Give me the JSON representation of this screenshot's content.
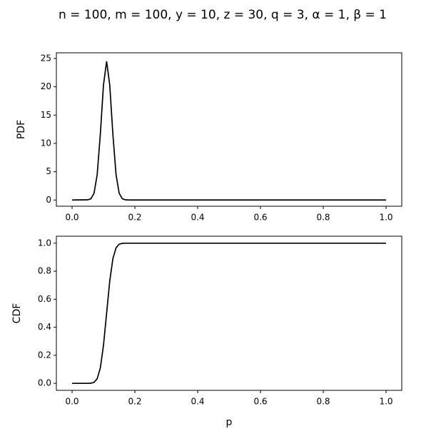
{
  "title": "n = 100, m = 100, y = 10, z = 30, q = 3, α = 1, β = 1",
  "chart_data": [
    {
      "type": "line",
      "y_label": "PDF",
      "x": [
        0,
        0.05,
        0.06,
        0.07,
        0.08,
        0.09,
        0.1,
        0.11,
        0.12,
        0.13,
        0.14,
        0.15,
        0.16,
        0.17,
        0.18,
        0.2,
        0.3,
        0.4,
        0.5,
        0.6,
        0.7,
        0.8,
        0.9,
        1.0
      ],
      "series": [
        {
          "color": "#000000",
          "values": [
            0,
            0.03,
            0.22,
            1.2,
            4.5,
            11.6,
            20.3,
            24.5,
            20.3,
            11.6,
            4.5,
            1.2,
            0.22,
            0.03,
            0,
            0,
            0,
            0,
            0,
            0,
            0,
            0,
            0,
            0
          ]
        }
      ],
      "xlim": [
        -0.05,
        1.05
      ],
      "ylim": [
        -1.1,
        26
      ],
      "xticks": [
        {
          "value": 0,
          "label": "0.0"
        },
        {
          "value": 0.2,
          "label": "0.2"
        },
        {
          "value": 0.4,
          "label": "0.4"
        },
        {
          "value": 0.6,
          "label": "0.6"
        },
        {
          "value": 0.8,
          "label": "0.8"
        },
        {
          "value": 1,
          "label": "1.0"
        }
      ],
      "yticks": [
        0,
        5,
        10,
        15,
        20,
        25
      ]
    },
    {
      "type": "line",
      "y_label": "CDF",
      "x_label": "p",
      "x": [
        0,
        0.05,
        0.06,
        0.07,
        0.08,
        0.09,
        0.1,
        0.11,
        0.12,
        0.13,
        0.14,
        0.15,
        0.16,
        0.17,
        0.18,
        0.2,
        0.3,
        0.4,
        0.5,
        0.6,
        0.7,
        0.8,
        0.9,
        1.0
      ],
      "series": [
        {
          "color": "#000000",
          "values": [
            0,
            0,
            0.001,
            0.007,
            0.033,
            0.11,
            0.27,
            0.5,
            0.73,
            0.89,
            0.967,
            0.993,
            0.999,
            1,
            1,
            1,
            1,
            1,
            1,
            1,
            1,
            1,
            1,
            1
          ]
        }
      ],
      "xlim": [
        -0.05,
        1.05
      ],
      "ylim": [
        -0.05,
        1.05
      ],
      "xticks": [
        {
          "value": 0,
          "label": "0.0"
        },
        {
          "value": 0.2,
          "label": "0.2"
        },
        {
          "value": 0.4,
          "label": "0.4"
        },
        {
          "value": 0.6,
          "label": "0.6"
        },
        {
          "value": 0.8,
          "label": "0.8"
        },
        {
          "value": 1,
          "label": "1.0"
        }
      ],
      "yticks": [
        {
          "value": 0,
          "label": "0.0"
        },
        {
          "value": 0.2,
          "label": "0.2"
        },
        {
          "value": 0.4,
          "label": "0.4"
        },
        {
          "value": 0.6,
          "label": "0.6"
        },
        {
          "value": 0.8,
          "label": "0.8"
        },
        {
          "value": 1,
          "label": "1.0"
        }
      ]
    }
  ]
}
